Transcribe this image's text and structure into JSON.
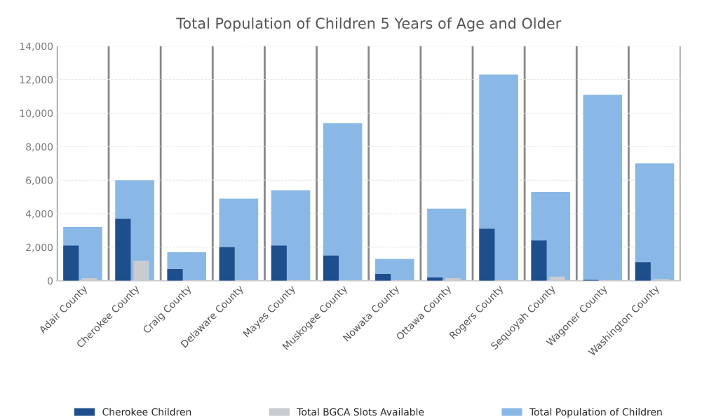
{
  "chart_data": {
    "type": "bar",
    "title": "Total Population of Children 5 Years of Age and Older",
    "categories": [
      "Adair County",
      "Cherokee County",
      "Craig County",
      "Delaware County",
      "Mayes County",
      "Muskogee County",
      "Nowata County",
      "Ottawa County",
      "Rogers County",
      "Sequoyah County",
      "Wagoner County",
      "Washington County"
    ],
    "series": [
      {
        "name": "Cherokee Children",
        "color": "#1f4e8c",
        "values": [
          2100,
          3700,
          700,
          2000,
          2100,
          1500,
          400,
          200,
          3100,
          2400,
          50,
          1100
        ]
      },
      {
        "name": "Total BGCA Slots Available",
        "color": "#c8ccd0",
        "values": [
          150,
          1200,
          null,
          null,
          null,
          null,
          null,
          150,
          null,
          250,
          null,
          100
        ]
      },
      {
        "name": "Total Population of Children",
        "color": "#8ab8e6",
        "values": [
          3200,
          6000,
          1700,
          4900,
          5400,
          9400,
          1300,
          4300,
          12300,
          5300,
          11100,
          7000
        ]
      }
    ],
    "ylim": [
      0,
      14000
    ],
    "yticks": [
      {
        "value": 0,
        "label": "0"
      },
      {
        "value": 2000,
        "label": "2,000"
      },
      {
        "value": 4000,
        "label": "4,000"
      },
      {
        "value": 6000,
        "label": "6,000"
      },
      {
        "value": 8000,
        "label": "8,000"
      },
      {
        "value": 10000,
        "label": "10,000"
      },
      {
        "value": 12000,
        "label": "12,000"
      },
      {
        "value": 14000,
        "label": "14,000"
      }
    ],
    "grid": true,
    "legend": "bottom"
  }
}
